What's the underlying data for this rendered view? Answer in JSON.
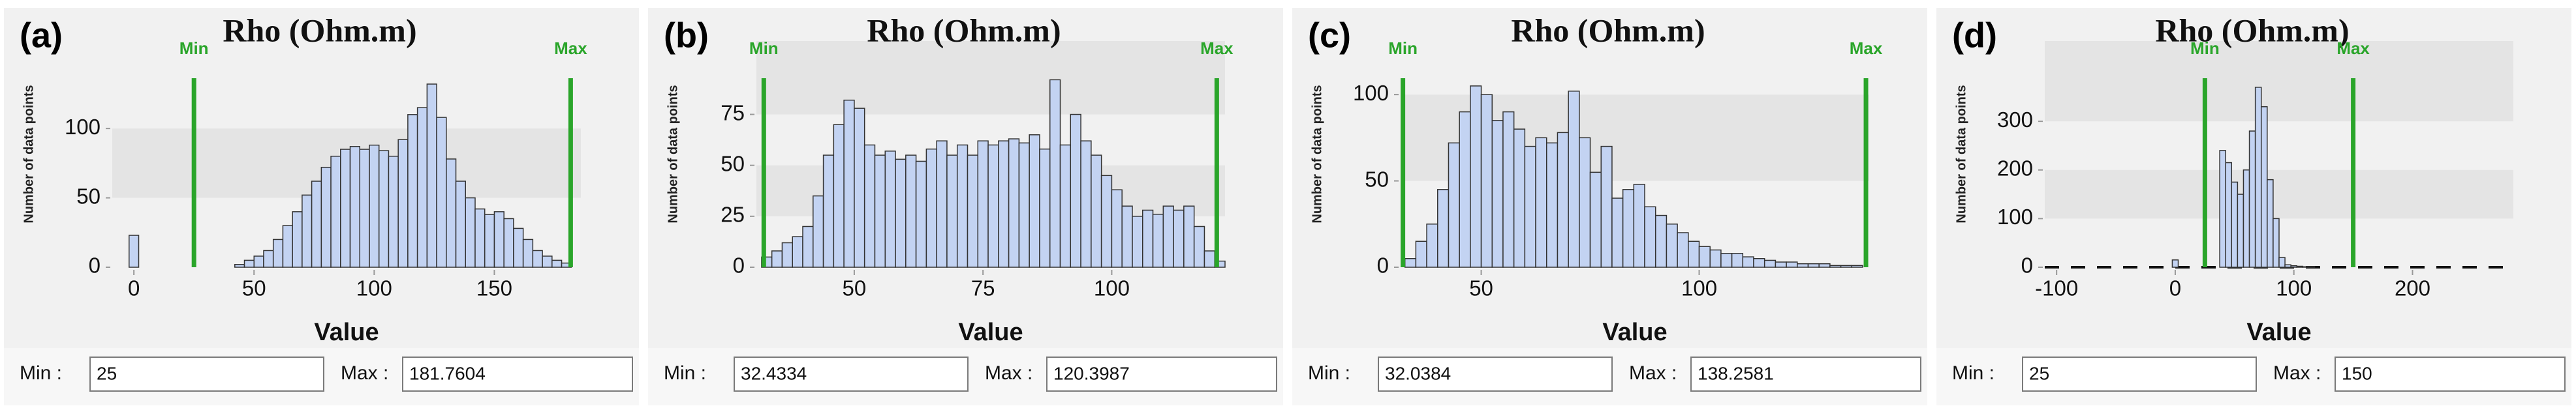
{
  "chart_data": [
    {
      "type": "histogram",
      "panel_label": "(a)",
      "title": "Rho (Ohm.m)",
      "x_label": "Value",
      "y_label": "Number of data points",
      "bins": [
        -2,
        2,
        6,
        10,
        14,
        18,
        22,
        26,
        30,
        34,
        38,
        42,
        46,
        50,
        54,
        58,
        62,
        66,
        70,
        74,
        78,
        82,
        86,
        90,
        94,
        98,
        102,
        106,
        110,
        114,
        118,
        122,
        126,
        130,
        134,
        138,
        142,
        146,
        150,
        154,
        158,
        162,
        166,
        170,
        174,
        178,
        182
      ],
      "values": [
        23,
        0,
        0,
        0,
        0,
        0,
        0,
        0,
        0,
        0,
        0,
        2,
        5,
        8,
        12,
        20,
        30,
        40,
        52,
        62,
        72,
        80,
        85,
        87,
        85,
        88,
        84,
        80,
        92,
        110,
        115,
        132,
        108,
        78,
        62,
        50,
        42,
        38,
        40,
        35,
        28,
        20,
        12,
        8,
        5,
        3
      ],
      "color": "#c3d3f2",
      "xlim": [
        -9,
        186
      ],
      "ylim": [
        0,
        163
      ],
      "xticks": [
        0,
        50,
        100,
        150
      ],
      "yticks": [
        0,
        50,
        100
      ],
      "min_marker_label": "Min",
      "max_marker_label": "Max",
      "min_value": 25,
      "max_value": 181.7604,
      "min_field_label": "Min :",
      "max_field_label": "Max :",
      "baseline_dashed": false
    },
    {
      "type": "histogram",
      "panel_label": "(b)",
      "title": "Rho (Ohm.m)",
      "x_label": "Value",
      "y_label": "Number of data points",
      "bins": [
        32,
        34,
        36,
        38,
        40,
        42,
        44,
        46,
        48,
        50,
        52,
        54,
        56,
        58,
        60,
        62,
        64,
        66,
        68,
        70,
        72,
        74,
        76,
        78,
        80,
        82,
        84,
        86,
        88,
        90,
        92,
        94,
        96,
        98,
        100,
        102,
        104,
        106,
        108,
        110,
        112,
        114,
        116,
        118,
        120,
        122
      ],
      "values": [
        5,
        8,
        12,
        15,
        20,
        35,
        55,
        70,
        82,
        78,
        60,
        55,
        57,
        53,
        55,
        52,
        58,
        62,
        55,
        60,
        55,
        62,
        60,
        62,
        63,
        61,
        65,
        58,
        92,
        60,
        75,
        62,
        55,
        45,
        38,
        30,
        25,
        28,
        26,
        30,
        28,
        30,
        20,
        8,
        3
      ],
      "color": "#c3d3f2",
      "xlim": [
        31,
        122
      ],
      "ylim": [
        0,
        111
      ],
      "xticks": [
        50,
        75,
        100
      ],
      "yticks": [
        0,
        25,
        50,
        75
      ],
      "min_marker_label": "Min",
      "max_marker_label": "Max",
      "min_value": 32.4334,
      "max_value": 120.3987,
      "min_field_label": "Min :",
      "max_field_label": "Max :",
      "baseline_dashed": false
    },
    {
      "type": "histogram",
      "panel_label": "(c)",
      "title": "Rho (Ohm.m)",
      "x_label": "Value",
      "y_label": "Number of data points",
      "bins": [
        32.5,
        35,
        37.5,
        40,
        42.5,
        45,
        47.5,
        50,
        52.5,
        55,
        57.5,
        60,
        62.5,
        65,
        67.5,
        70,
        72.5,
        75,
        77.5,
        80,
        82.5,
        85,
        87.5,
        90,
        92.5,
        95,
        97.5,
        100,
        102.5,
        105,
        107.5,
        110,
        112.5,
        115,
        117.5,
        120,
        122.5,
        125,
        127.5,
        130,
        132.5,
        135,
        137.5
      ],
      "values": [
        5,
        15,
        25,
        45,
        72,
        90,
        105,
        100,
        85,
        90,
        80,
        70,
        75,
        72,
        78,
        102,
        75,
        55,
        70,
        40,
        45,
        48,
        35,
        30,
        25,
        20,
        15,
        12,
        10,
        8,
        8,
        6,
        5,
        4,
        3,
        3,
        2,
        2,
        2,
        1,
        1,
        1
      ],
      "color": "#c3d3f2",
      "xlim": [
        31.5,
        139
      ],
      "ylim": [
        0,
        131
      ],
      "xticks": [
        50,
        100
      ],
      "yticks": [
        0,
        50,
        100
      ],
      "min_marker_label": "Min",
      "max_marker_label": "Max",
      "min_value": 32.0384,
      "max_value": 138.2581,
      "min_field_label": "Min :",
      "max_field_label": "Max :",
      "baseline_dashed": false
    },
    {
      "type": "histogram",
      "panel_label": "(d)",
      "title": "Rho (Ohm.m)",
      "x_label": "Value",
      "y_label": "Number of data points",
      "bins": [
        -2.5,
        2.5,
        7.5,
        12.5,
        17.5,
        22.5,
        27.5,
        32.5,
        37.5,
        42.5,
        47.5,
        52.5,
        57.5,
        62.5,
        67.5,
        72.5,
        77.5,
        82.5,
        87.5,
        92.5,
        97.5,
        102.5,
        107.5,
        112.5,
        117.5
      ],
      "values": [
        15,
        0,
        0,
        0,
        0,
        0,
        0,
        0,
        240,
        215,
        175,
        150,
        200,
        280,
        370,
        330,
        180,
        100,
        20,
        5,
        3,
        2,
        1,
        1
      ],
      "color": "#c3d3f2",
      "xlim": [
        -110,
        285
      ],
      "ylim": [
        0,
        465
      ],
      "xticks": [
        -100,
        0,
        100,
        200
      ],
      "yticks": [
        0,
        100,
        200,
        300
      ],
      "min_marker_label": "Min",
      "max_marker_label": "Max",
      "min_value": 25,
      "max_value": 150,
      "min_field_label": "Min :",
      "max_field_label": "Max :",
      "baseline_dashed": true
    }
  ]
}
